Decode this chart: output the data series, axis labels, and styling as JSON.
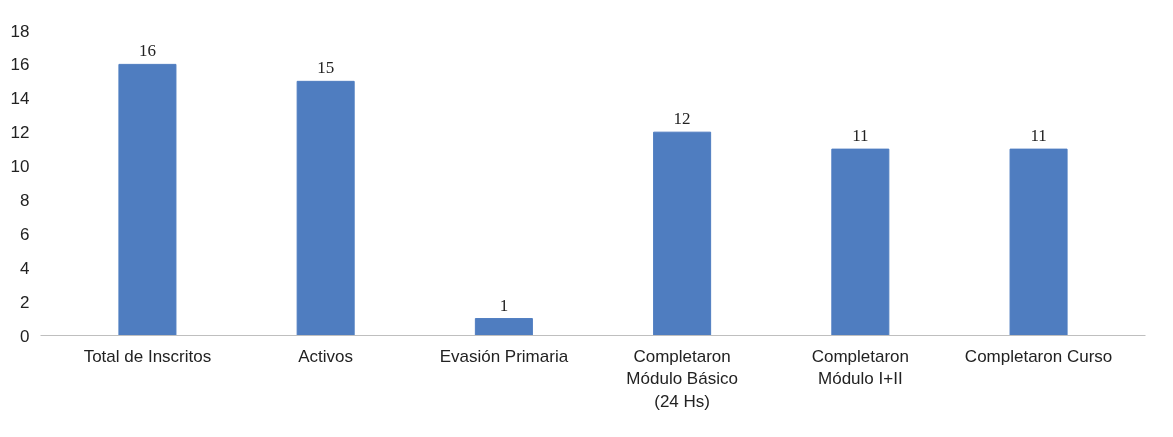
{
  "chart_data": {
    "type": "bar",
    "categories": [
      "Total de Inscritos",
      "Activos",
      "Evasión Primaria",
      "Completaron Módulo Básico (24 Hs)",
      "Completaron Módulo I+II",
      "Completaron Curso"
    ],
    "values": [
      16,
      15,
      1,
      12,
      11,
      11
    ],
    "color": "#4f7dc0",
    "ylim": [
      0,
      18
    ],
    "yticks": [
      0,
      2,
      4,
      6,
      8,
      10,
      12,
      14,
      16,
      18
    ],
    "grid": false,
    "data_labels": true
  }
}
